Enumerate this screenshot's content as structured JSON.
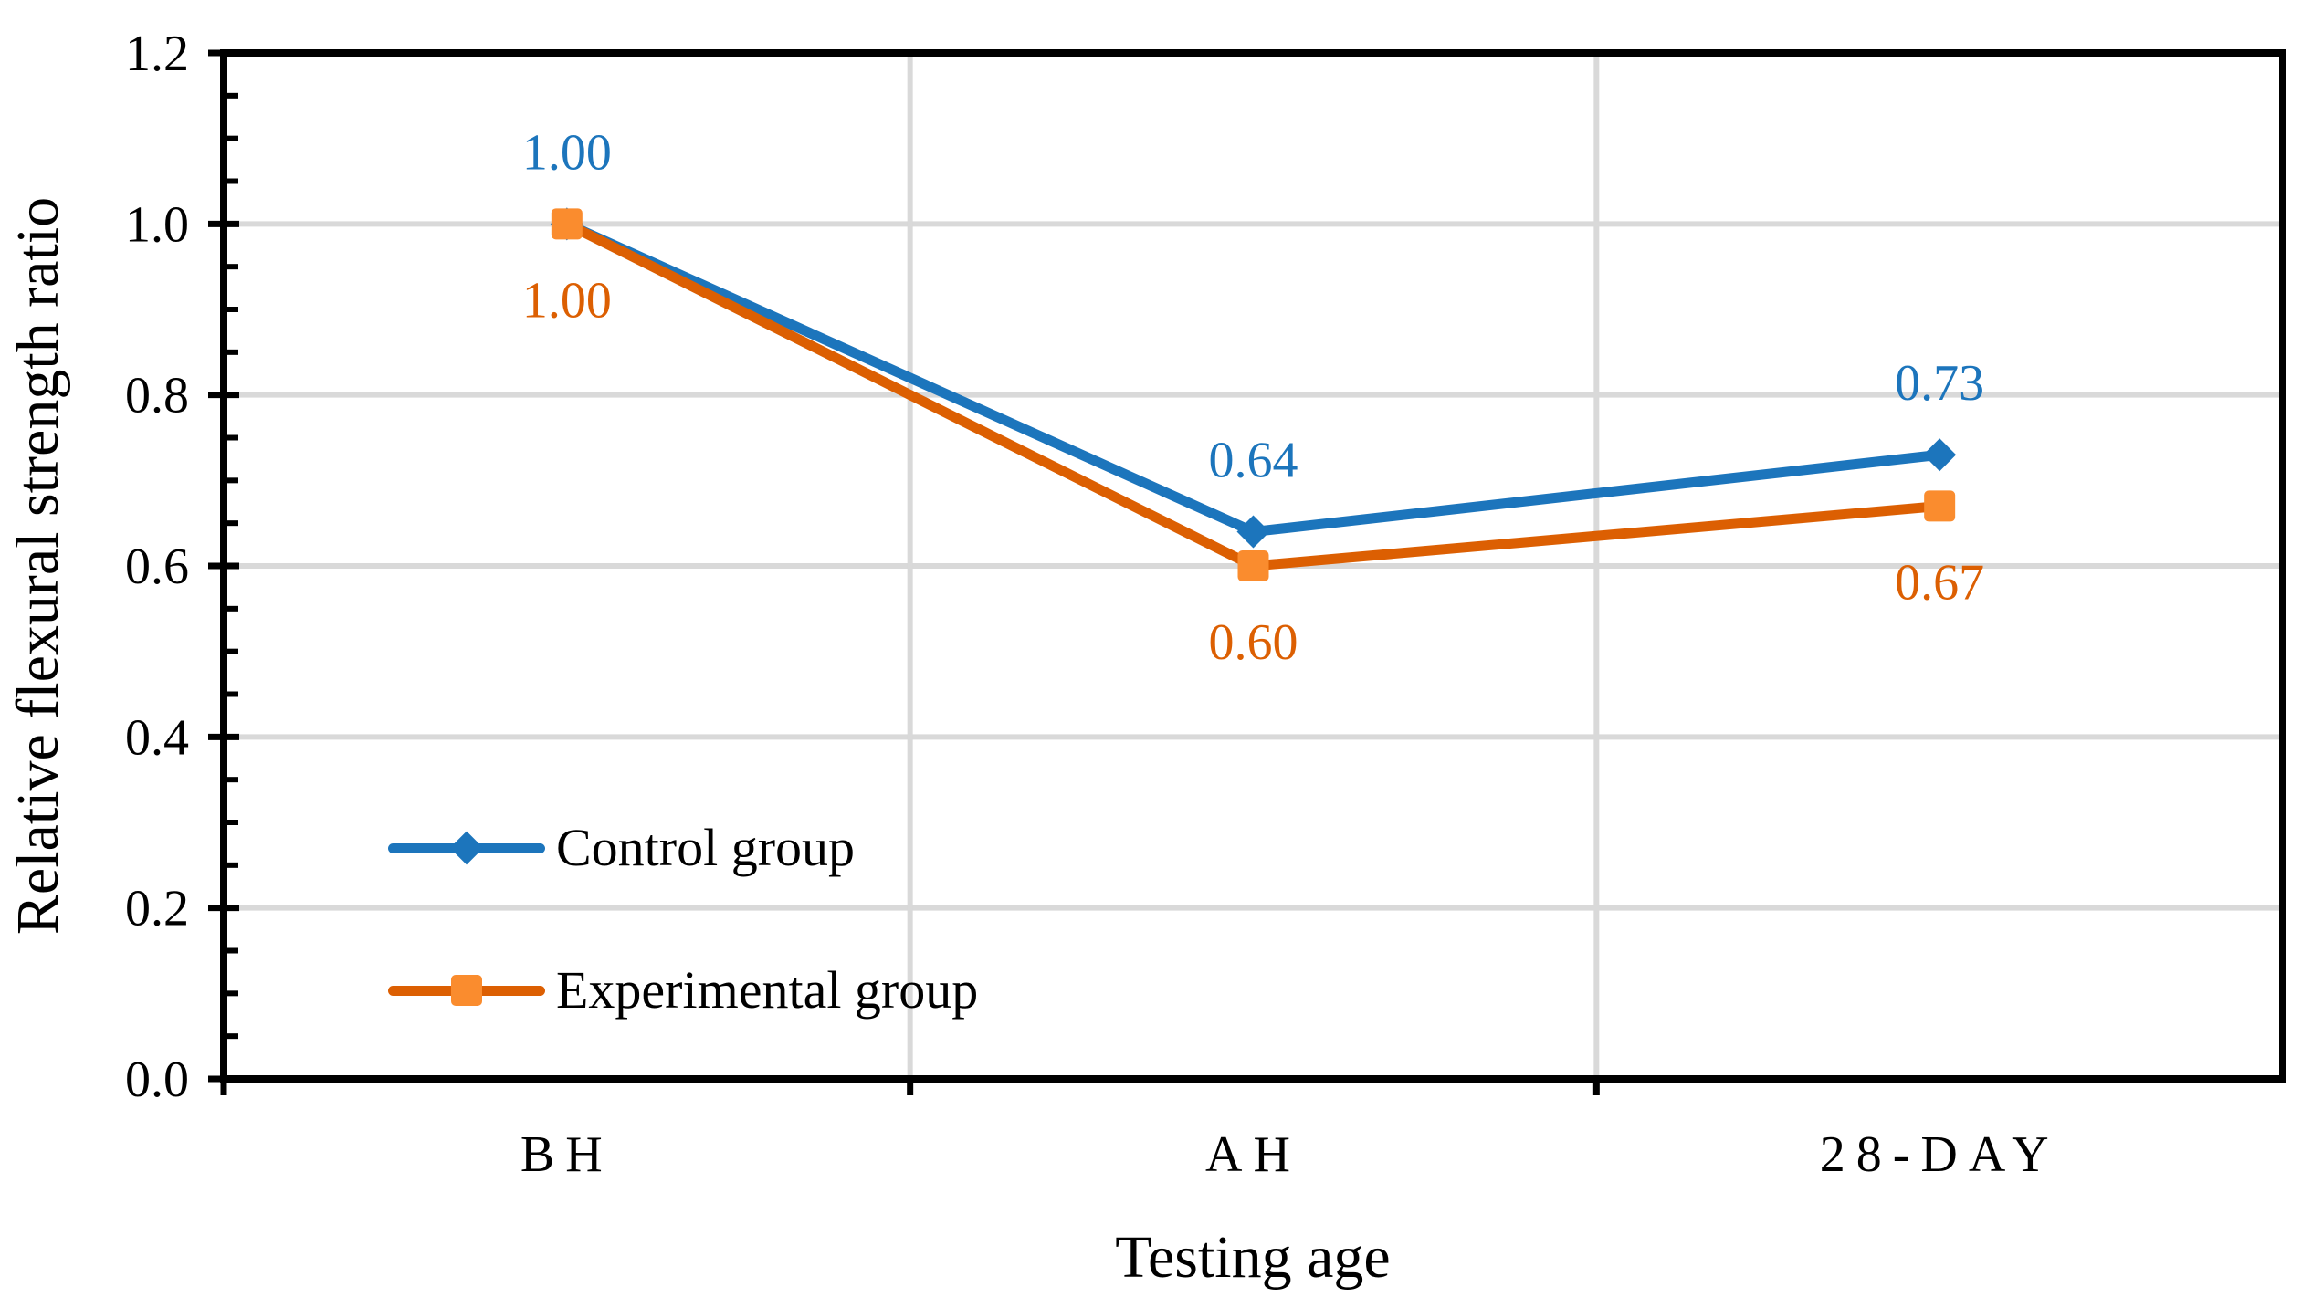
{
  "chart_data": {
    "type": "line",
    "title": "",
    "xlabel": "Testing age",
    "ylabel": "Relative flexural strength ratio",
    "categories": [
      "BH",
      "AH",
      "28-DAY"
    ],
    "ylim": [
      0.0,
      1.2
    ],
    "ytick_step": 0.2,
    "yminor_step": 0.05,
    "ytick_decimals": 1,
    "grid": true,
    "legend_position": "inside-lower-left",
    "series": [
      {
        "name": "Control group",
        "values": [
          1.0,
          0.64,
          0.73
        ],
        "data_labels": [
          "1.00",
          "0.64",
          "0.73"
        ],
        "data_label_position": "above",
        "color": "#1C75BC",
        "marker": "diamond",
        "marker_fill": "#1C75BC"
      },
      {
        "name": "Experimental group",
        "values": [
          1.0,
          0.6,
          0.67
        ],
        "data_labels": [
          "1.00",
          "0.60",
          "0.67"
        ],
        "data_label_position": "below",
        "color": "#DC5F02",
        "marker": "square",
        "marker_fill": "#FA8C2E"
      }
    ],
    "colors": {
      "gridline": "#D9D9D9",
      "axis": "#000000",
      "text": "#000000",
      "background": "#FFFFFF"
    }
  }
}
